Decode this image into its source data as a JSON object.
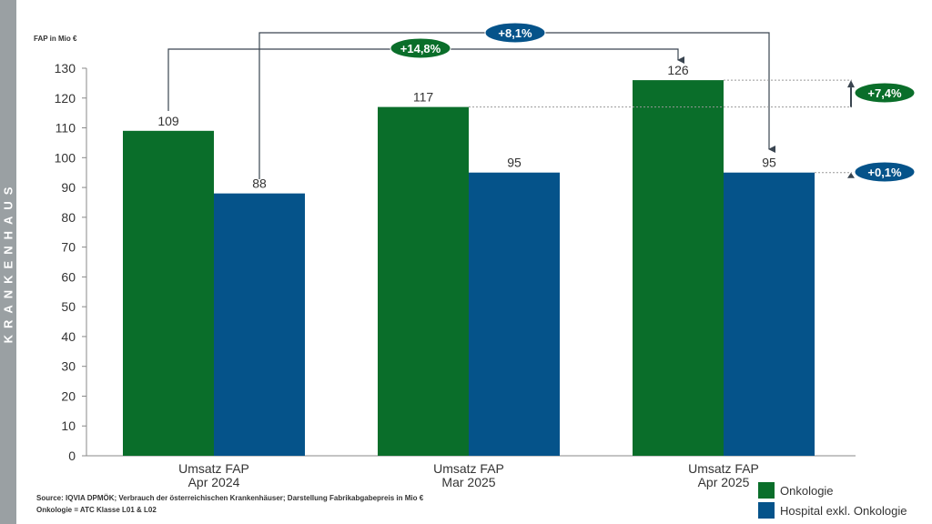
{
  "side_label": "KRANKENHAUS",
  "chart_data": {
    "type": "bar",
    "ylabel": "FAP in Mio €",
    "ylim": [
      0,
      130
    ],
    "yticks": [
      0,
      10,
      20,
      30,
      40,
      50,
      60,
      70,
      80,
      90,
      100,
      110,
      120,
      130
    ],
    "categories": [
      [
        "Umsatz FAP",
        "Apr 2024"
      ],
      [
        "Umsatz FAP",
        "Mar 2025"
      ],
      [
        "Umsatz FAP",
        "Apr 2025"
      ]
    ],
    "series": [
      {
        "name": "Onkologie",
        "color": "#0a6e2a",
        "values": [
          109,
          117,
          126
        ],
        "labels": [
          "109",
          "117",
          "126"
        ]
      },
      {
        "name": "Hospital exkl. Onkologie",
        "color": "#05538a",
        "values": [
          88,
          95,
          95
        ],
        "labels": [
          "88",
          "95",
          "95"
        ]
      }
    ],
    "annotations": {
      "onko_yoy": "+14,8%",
      "hosp_yoy": "+8,1%",
      "onko_mom": "+7,4%",
      "hosp_mom": "+0,1%"
    },
    "legend_position": "bottom-right"
  },
  "source": "Source: IQVIA DPMÖK; Verbrauch der österreichischen Krankenhäuser; Darstellung Fabrikabgabepreis in Mio €",
  "note": "Onkologie = ATC Klasse L01 & L02"
}
